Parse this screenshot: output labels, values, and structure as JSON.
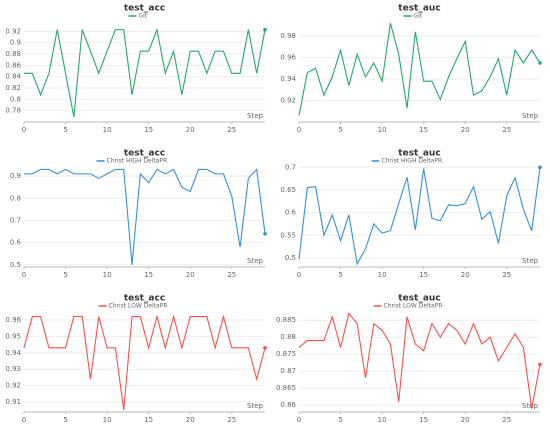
{
  "chart_data": [
    {
      "type": "line",
      "title": "test_acc",
      "x_label": "Step",
      "xlim": [
        0,
        29
      ],
      "xticks": [
        0,
        5,
        10,
        15,
        20,
        25
      ],
      "ylim": [
        0.76,
        0.94
      ],
      "yticks": [
        0.78,
        0.8,
        0.82,
        0.84,
        0.86,
        0.88,
        0.9,
        0.92
      ],
      "grid": true,
      "x": [
        0,
        1,
        2,
        3,
        4,
        5,
        6,
        7,
        8,
        9,
        10,
        11,
        12,
        13,
        14,
        15,
        16,
        17,
        18,
        19,
        20,
        21,
        22,
        23,
        24,
        25,
        26,
        27,
        28,
        29
      ],
      "series": [
        {
          "name": "Git",
          "color": "#2ca56a",
          "values": [
            0.846,
            0.846,
            0.808,
            0.846,
            0.923,
            0.846,
            0.769,
            0.923,
            0.885,
            0.846,
            0.885,
            0.923,
            0.923,
            0.808,
            0.885,
            0.885,
            0.923,
            0.846,
            0.885,
            0.808,
            0.885,
            0.885,
            0.846,
            0.885,
            0.885,
            0.846,
            0.846,
            0.923,
            0.846,
            0.923
          ]
        }
      ]
    },
    {
      "type": "line",
      "title": "test_auc",
      "x_label": "Step",
      "xlim": [
        0,
        29
      ],
      "xticks": [
        0,
        5,
        10,
        15,
        20,
        25
      ],
      "ylim": [
        0.9,
        0.995
      ],
      "yticks": [
        0.92,
        0.94,
        0.96,
        0.98
      ],
      "grid": true,
      "x": [
        0,
        1,
        2,
        3,
        4,
        5,
        6,
        7,
        8,
        9,
        10,
        11,
        12,
        13,
        14,
        15,
        16,
        17,
        18,
        19,
        20,
        21,
        22,
        23,
        24,
        25,
        26,
        27,
        28,
        29
      ],
      "series": [
        {
          "name": "Git",
          "color": "#2ca56a",
          "values": [
            0.906,
            0.946,
            0.95,
            0.925,
            0.942,
            0.967,
            0.934,
            0.963,
            0.942,
            0.955,
            0.938,
            0.992,
            0.963,
            0.913,
            0.984,
            0.938,
            0.938,
            0.921,
            0.942,
            0.959,
            0.975,
            0.925,
            0.929,
            0.942,
            0.959,
            0.925,
            0.967,
            0.955,
            0.967,
            0.955
          ]
        }
      ]
    },
    {
      "type": "line",
      "title": "test_acc",
      "x_label": "Step",
      "xlim": [
        0,
        29
      ],
      "xticks": [
        0,
        5,
        10,
        15,
        20,
        25
      ],
      "ylim": [
        0.49,
        0.95
      ],
      "yticks": [
        0.5,
        0.6,
        0.7,
        0.8,
        0.9
      ],
      "grid": true,
      "x": [
        0,
        1,
        2,
        3,
        4,
        5,
        6,
        7,
        8,
        9,
        10,
        11,
        12,
        13,
        14,
        15,
        16,
        17,
        18,
        19,
        20,
        21,
        22,
        23,
        24,
        25,
        26,
        27,
        28,
        29
      ],
      "series": [
        {
          "name": "Christ HIGH DeltaPR",
          "color": "#3a8fd6",
          "values": [
            0.91,
            0.91,
            0.93,
            0.93,
            0.91,
            0.93,
            0.91,
            0.91,
            0.91,
            0.89,
            0.91,
            0.93,
            0.93,
            0.5,
            0.91,
            0.87,
            0.93,
            0.91,
            0.93,
            0.85,
            0.83,
            0.93,
            0.93,
            0.91,
            0.91,
            0.81,
            0.58,
            0.89,
            0.93,
            0.64
          ]
        }
      ]
    },
    {
      "type": "line",
      "title": "test_auc",
      "x_label": "Step",
      "xlim": [
        0,
        29
      ],
      "xticks": [
        0,
        5,
        10,
        15,
        20,
        25
      ],
      "ylim": [
        0.48,
        0.705
      ],
      "yticks": [
        0.5,
        0.55,
        0.6,
        0.65,
        0.7
      ],
      "grid": true,
      "x": [
        0,
        1,
        2,
        3,
        4,
        5,
        6,
        7,
        8,
        9,
        10,
        11,
        12,
        13,
        14,
        15,
        16,
        17,
        18,
        19,
        20,
        21,
        22,
        23,
        24,
        25,
        26,
        27,
        28,
        29
      ],
      "series": [
        {
          "name": "Christ HIGH DeltaPR",
          "color": "#3a8fd6",
          "values": [
            0.497,
            0.655,
            0.657,
            0.55,
            0.595,
            0.538,
            0.595,
            0.487,
            0.52,
            0.575,
            0.555,
            0.56,
            0.62,
            0.678,
            0.562,
            0.697,
            0.587,
            0.582,
            0.617,
            0.615,
            0.62,
            0.657,
            0.585,
            0.602,
            0.532,
            0.637,
            0.677,
            0.607,
            0.56,
            0.7
          ]
        }
      ]
    },
    {
      "type": "line",
      "title": "test_acc",
      "x_label": "Step",
      "xlim": [
        0,
        29
      ],
      "xticks": [
        0,
        5,
        10,
        15,
        20,
        25
      ],
      "ylim": [
        0.904,
        0.966
      ],
      "yticks": [
        0.91,
        0.92,
        0.93,
        0.94,
        0.95,
        0.96
      ],
      "grid": true,
      "x": [
        0,
        1,
        2,
        3,
        4,
        5,
        6,
        7,
        8,
        9,
        10,
        11,
        12,
        13,
        14,
        15,
        16,
        17,
        18,
        19,
        20,
        21,
        22,
        23,
        24,
        25,
        26,
        27,
        28,
        29
      ],
      "series": [
        {
          "name": "Christ LOW DeltaPR",
          "color": "#f0544f",
          "values": [
            0.943,
            0.962,
            0.962,
            0.943,
            0.943,
            0.943,
            0.962,
            0.962,
            0.924,
            0.962,
            0.943,
            0.943,
            0.905,
            0.962,
            0.962,
            0.943,
            0.962,
            0.943,
            0.962,
            0.943,
            0.962,
            0.962,
            0.962,
            0.943,
            0.962,
            0.943,
            0.943,
            0.943,
            0.924,
            0.943
          ]
        }
      ]
    },
    {
      "type": "line",
      "title": "test_auc",
      "x_label": "Step",
      "xlim": [
        0,
        29
      ],
      "xticks": [
        0,
        5,
        10,
        15,
        20,
        25
      ],
      "ylim": [
        0.858,
        0.888
      ],
      "yticks": [
        0.86,
        0.865,
        0.87,
        0.875,
        0.88,
        0.885
      ],
      "grid": true,
      "x": [
        0,
        1,
        2,
        3,
        4,
        5,
        6,
        7,
        8,
        9,
        10,
        11,
        12,
        13,
        14,
        15,
        16,
        17,
        18,
        19,
        20,
        21,
        22,
        23,
        24,
        25,
        26,
        27,
        28,
        29
      ],
      "series": [
        {
          "name": "Christ LOW DeltaPR",
          "color": "#f0544f",
          "values": [
            0.877,
            0.879,
            0.879,
            0.879,
            0.886,
            0.877,
            0.887,
            0.884,
            0.868,
            0.884,
            0.882,
            0.878,
            0.861,
            0.886,
            0.878,
            0.876,
            0.884,
            0.88,
            0.884,
            0.882,
            0.878,
            0.884,
            0.878,
            0.88,
            0.873,
            0.877,
            0.881,
            0.877,
            0.859,
            0.872
          ]
        }
      ]
    }
  ]
}
